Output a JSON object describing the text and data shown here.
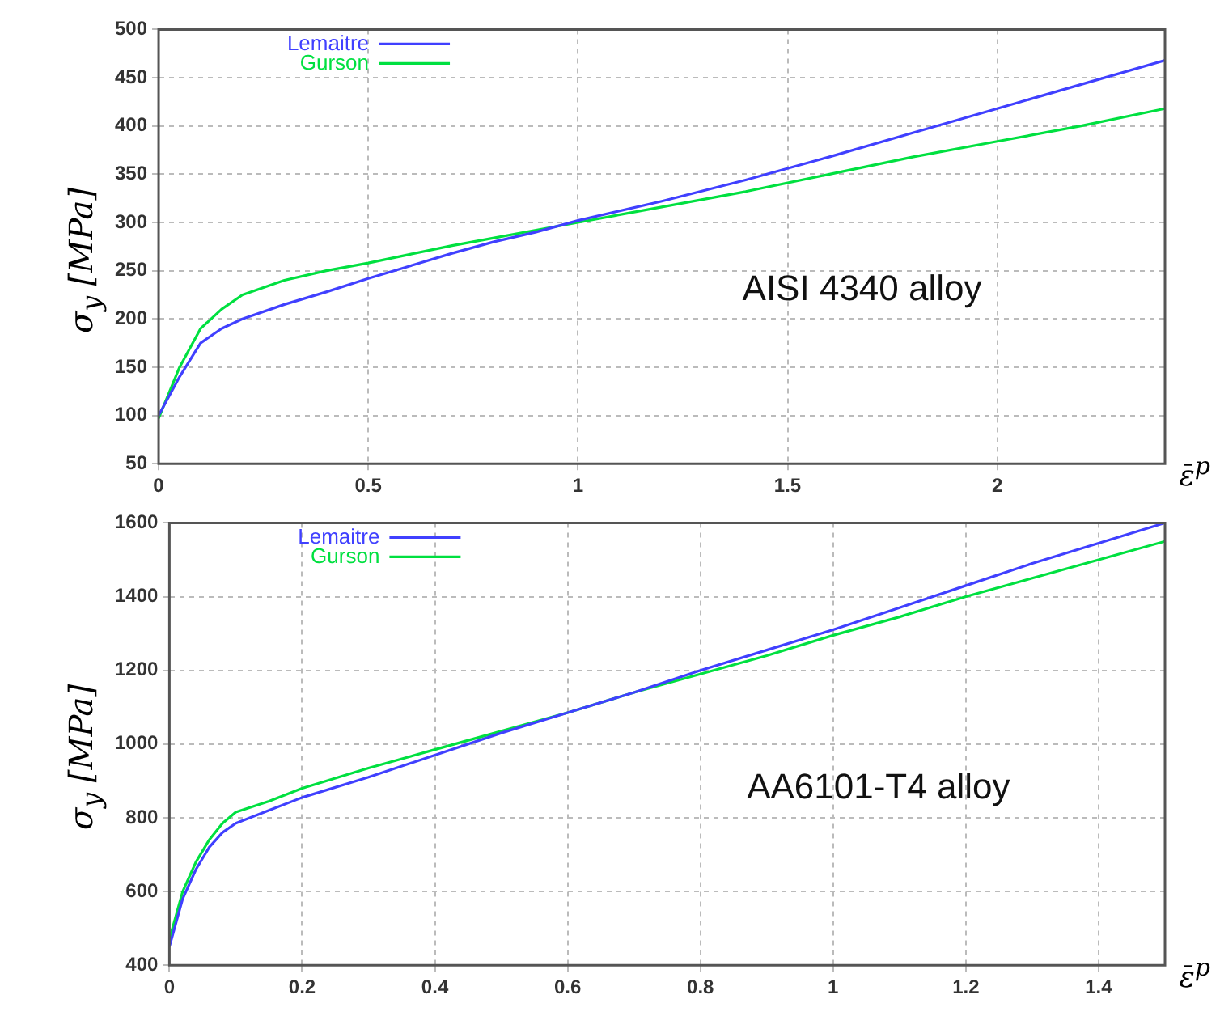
{
  "chart_data": [
    {
      "type": "line",
      "ylabel": "σ$_{y}$ [MPa]",
      "xlabel": "ε̄$^{p}$",
      "annotations": [
        "AISI 4340 alloy"
      ],
      "xlim": [
        0,
        2.4
      ],
      "xticks": [
        0,
        0.5,
        1,
        1.5,
        2
      ],
      "ylim": [
        50,
        500
      ],
      "yticks": [
        50,
        100,
        150,
        200,
        250,
        300,
        350,
        400,
        450,
        500
      ],
      "grid": true,
      "legend": "top left",
      "line_style": "solid",
      "marker": "none",
      "x": [
        0,
        0.05,
        0.1,
        0.15,
        0.2,
        0.3,
        0.4,
        0.5,
        0.6,
        0.7,
        0.8,
        0.9,
        1.0,
        1.2,
        1.4,
        1.6,
        1.8,
        2.0,
        2.2,
        2.4
      ],
      "series": [
        {
          "name": "Lemaitre",
          "color": "#4040ff",
          "values": [
            100,
            140,
            175,
            190,
            200,
            215,
            228,
            242,
            255,
            268,
            280,
            290,
            302,
            322,
            344,
            368,
            393,
            418,
            443,
            468
          ]
        },
        {
          "name": "Gurson",
          "color": "#00e040",
          "values": [
            97,
            150,
            190,
            210,
            225,
            240,
            250,
            258,
            267,
            276,
            284,
            292,
            300,
            316,
            332,
            350,
            368,
            384,
            400,
            418
          ]
        }
      ]
    },
    {
      "type": "line",
      "ylabel": "σ$_{y}$ [MPa]",
      "xlabel": "ε̄$^{p}$",
      "annotations": [
        "AA6101-T4 alloy"
      ],
      "xlim": [
        0,
        1.5
      ],
      "xticks": [
        0,
        0.2,
        0.4,
        0.6,
        0.8,
        1,
        1.2,
        1.4
      ],
      "ylim": [
        400,
        1600
      ],
      "yticks": [
        400,
        600,
        800,
        1000,
        1200,
        1400,
        1600
      ],
      "grid": true,
      "legend": "top left",
      "line_style": "solid",
      "marker": "none",
      "x": [
        0,
        0.02,
        0.04,
        0.06,
        0.08,
        0.1,
        0.15,
        0.2,
        0.3,
        0.4,
        0.5,
        0.6,
        0.7,
        0.8,
        0.9,
        1.0,
        1.1,
        1.2,
        1.3,
        1.4,
        1.5
      ],
      "series": [
        {
          "name": "Lemaitre",
          "color": "#4040ff",
          "values": [
            450,
            580,
            660,
            720,
            760,
            785,
            820,
            855,
            910,
            970,
            1030,
            1085,
            1140,
            1200,
            1255,
            1310,
            1370,
            1430,
            1490,
            1545,
            1600
          ]
        },
        {
          "name": "Gurson",
          "color": "#00e040",
          "values": [
            470,
            600,
            680,
            740,
            785,
            815,
            845,
            880,
            935,
            985,
            1035,
            1085,
            1140,
            1190,
            1240,
            1295,
            1345,
            1400,
            1450,
            1500,
            1550
          ]
        }
      ]
    }
  ]
}
